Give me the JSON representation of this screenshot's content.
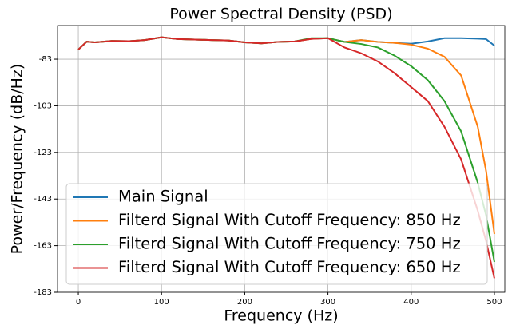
{
  "chart_data": {
    "type": "line",
    "title": "Power Spectral Density (PSD)",
    "x_label": "Frequency (Hz)",
    "y_label": "Power/Frequency (dB/Hz)",
    "x": [
      0,
      10,
      20,
      40,
      60,
      80,
      100,
      120,
      140,
      160,
      180,
      200,
      220,
      240,
      260,
      280,
      300,
      320,
      340,
      360,
      380,
      400,
      420,
      440,
      460,
      480,
      490,
      500
    ],
    "series": [
      {
        "name": "Main Signal",
        "color": "#1f77b4",
        "values": [
          -78.9,
          -75.5,
          -75.8,
          -75.2,
          -75.3,
          -74.8,
          -73.6,
          -74.4,
          -74.6,
          -74.8,
          -75.0,
          -75.8,
          -76.2,
          -75.6,
          -75.4,
          -74.3,
          -74.0,
          -75.6,
          -74.8,
          -75.6,
          -76.0,
          -76.4,
          -75.4,
          -74.0,
          -74.0,
          -74.2,
          -74.4,
          -77.2
        ]
      },
      {
        "name": "Filterd Signal With Cutoff Frequency: 850 Hz",
        "color": "#ff7f0e",
        "values": [
          -78.9,
          -75.5,
          -75.8,
          -75.2,
          -75.3,
          -74.8,
          -73.6,
          -74.4,
          -74.6,
          -74.8,
          -75.0,
          -75.8,
          -76.2,
          -75.6,
          -75.4,
          -74.3,
          -74.0,
          -75.6,
          -74.8,
          -75.6,
          -76.0,
          -76.8,
          -78.5,
          -82,
          -90,
          -112,
          -131,
          -158
        ]
      },
      {
        "name": "Filterd Signal With Cutoff Frequency: 750 Hz",
        "color": "#2ca02c",
        "values": [
          -78.9,
          -75.5,
          -75.8,
          -75.2,
          -75.3,
          -74.8,
          -73.6,
          -74.4,
          -74.6,
          -74.8,
          -75.0,
          -75.8,
          -76.2,
          -75.6,
          -75.4,
          -74.0,
          -74.0,
          -75.6,
          -76.5,
          -78,
          -81.5,
          -86,
          -92,
          -101,
          -114,
          -136,
          -150,
          -170
        ]
      },
      {
        "name": "Filterd Signal With Cutoff Frequency: 650 Hz",
        "color": "#d62728",
        "values": [
          -78.9,
          -75.5,
          -75.8,
          -75.2,
          -75.3,
          -74.8,
          -73.6,
          -74.4,
          -74.6,
          -74.8,
          -75.0,
          -75.8,
          -76.2,
          -75.6,
          -75.4,
          -74.3,
          -74.0,
          -78,
          -80.5,
          -84,
          -89,
          -95,
          -101,
          -112,
          -126,
          -148,
          -161,
          -177
        ]
      }
    ],
    "xlim": [
      -25,
      512.5
    ],
    "xticks": [
      0,
      100,
      200,
      300,
      400,
      500
    ],
    "ylim": [
      -183,
      -68.6
    ],
    "yticks": [
      -183,
      -163,
      -143,
      -123,
      -103,
      -83
    ],
    "grid": true,
    "legend": "lower left"
  }
}
